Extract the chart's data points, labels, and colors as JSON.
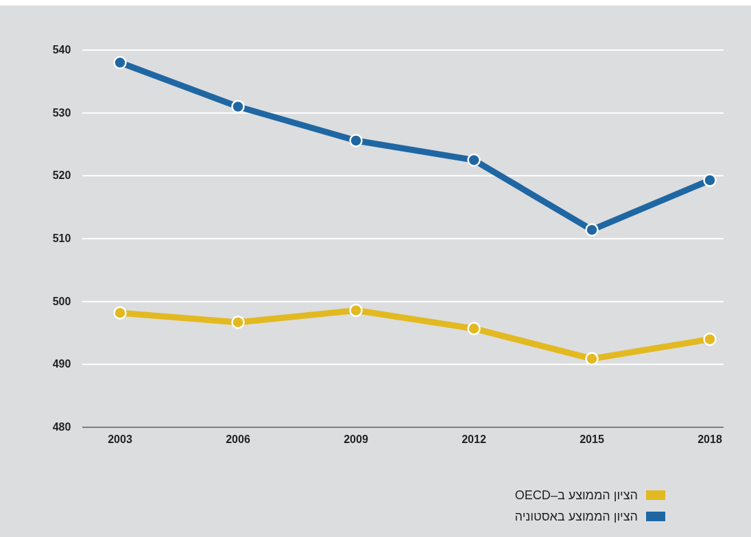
{
  "chart_data": {
    "type": "line",
    "categories": [
      "2003",
      "2006",
      "2009",
      "2012",
      "2015",
      "2018"
    ],
    "series": [
      {
        "name": "הציון הממוצע באסטוניה",
        "color": "#1f67a3",
        "values": [
          538,
          531,
          525.6,
          522.5,
          511.4,
          519.3
        ]
      },
      {
        "name": "הציון הממוצע ב–OECD",
        "color": "#e2b920",
        "values": [
          498.2,
          496.7,
          498.6,
          495.7,
          490.9,
          494
        ]
      }
    ],
    "ylim": [
      480,
      540
    ],
    "yticks": [
      480,
      490,
      500,
      510,
      520,
      530,
      540
    ],
    "grid": "y",
    "legend": "bottom right",
    "marker": "circle",
    "line_style": "solid"
  }
}
